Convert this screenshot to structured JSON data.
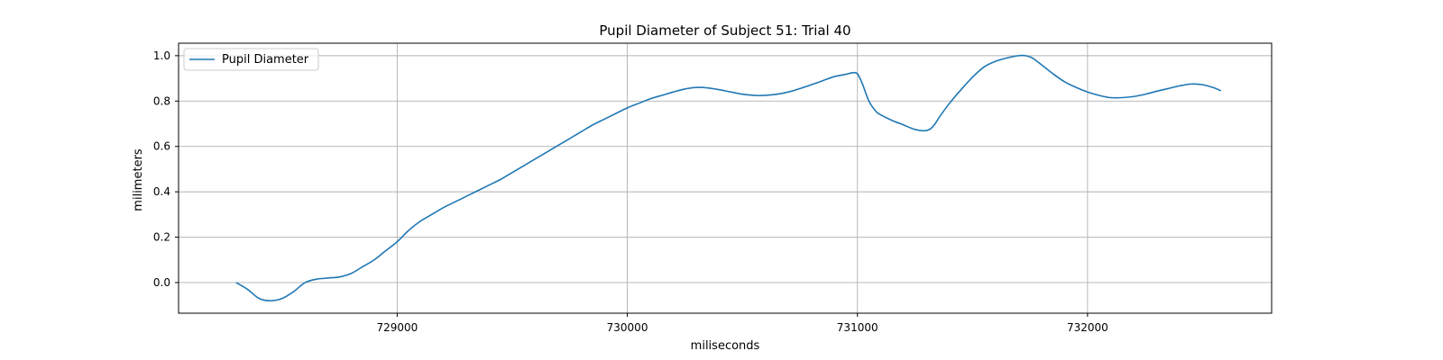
{
  "chart_data": {
    "type": "line",
    "title": "Pupil Diameter of Subject 51: Trial 40",
    "xlabel": "miliseconds",
    "ylabel": "milimeters",
    "xlim": [
      728050,
      732800
    ],
    "ylim": [
      -0.135,
      1.055
    ],
    "x_ticks": [
      729000,
      730000,
      731000,
      732000
    ],
    "x_tick_labels": [
      "729000",
      "730000",
      "731000",
      "732000"
    ],
    "y_ticks": [
      0.0,
      0.2,
      0.4,
      0.6,
      0.8,
      1.0
    ],
    "y_tick_labels": [
      "0.0",
      "0.2",
      "0.4",
      "0.6",
      "0.8",
      "1.0"
    ],
    "grid": true,
    "legend": {
      "position": "top-left",
      "entries": [
        "Pupil Diameter"
      ]
    },
    "series": [
      {
        "name": "Pupil Diameter",
        "color": "#1f77b4",
        "x": [
          728300,
          728350,
          728400,
          728450,
          728500,
          728550,
          728600,
          728650,
          728700,
          728750,
          728800,
          728850,
          728900,
          728950,
          729000,
          729050,
          729100,
          729150,
          729200,
          729250,
          729300,
          729350,
          729400,
          729450,
          729500,
          729550,
          729600,
          729650,
          729700,
          729750,
          729800,
          729850,
          729900,
          729950,
          730000,
          730050,
          730100,
          730150,
          730200,
          730250,
          730300,
          730350,
          730400,
          730450,
          730500,
          730550,
          730600,
          730650,
          730700,
          730750,
          730800,
          730850,
          730900,
          730950,
          730980,
          731000,
          731020,
          731050,
          731080,
          731100,
          731150,
          731200,
          731250,
          731300,
          731330,
          731360,
          731400,
          731450,
          731500,
          731550,
          731600,
          731650,
          731700,
          731730,
          731760,
          731800,
          731850,
          731900,
          731950,
          732000,
          732050,
          732100,
          732150,
          732200,
          732250,
          732300,
          732350,
          732400,
          732450,
          732500,
          732550,
          732580
        ],
        "y": [
          0.0,
          -0.03,
          -0.07,
          -0.08,
          -0.07,
          -0.04,
          0.0,
          0.015,
          0.02,
          0.025,
          0.04,
          0.07,
          0.1,
          0.14,
          0.18,
          0.23,
          0.27,
          0.3,
          0.33,
          0.355,
          0.38,
          0.405,
          0.43,
          0.455,
          0.485,
          0.515,
          0.545,
          0.575,
          0.605,
          0.635,
          0.665,
          0.695,
          0.72,
          0.745,
          0.77,
          0.79,
          0.81,
          0.825,
          0.84,
          0.853,
          0.86,
          0.858,
          0.85,
          0.84,
          0.83,
          0.825,
          0.825,
          0.83,
          0.84,
          0.855,
          0.872,
          0.89,
          0.908,
          0.918,
          0.925,
          0.92,
          0.88,
          0.8,
          0.755,
          0.74,
          0.715,
          0.695,
          0.675,
          0.67,
          0.69,
          0.735,
          0.79,
          0.85,
          0.905,
          0.95,
          0.975,
          0.99,
          1.0,
          1.0,
          0.99,
          0.96,
          0.92,
          0.885,
          0.86,
          0.84,
          0.825,
          0.815,
          0.815,
          0.82,
          0.83,
          0.843,
          0.855,
          0.867,
          0.875,
          0.872,
          0.858,
          0.845
        ]
      }
    ]
  }
}
